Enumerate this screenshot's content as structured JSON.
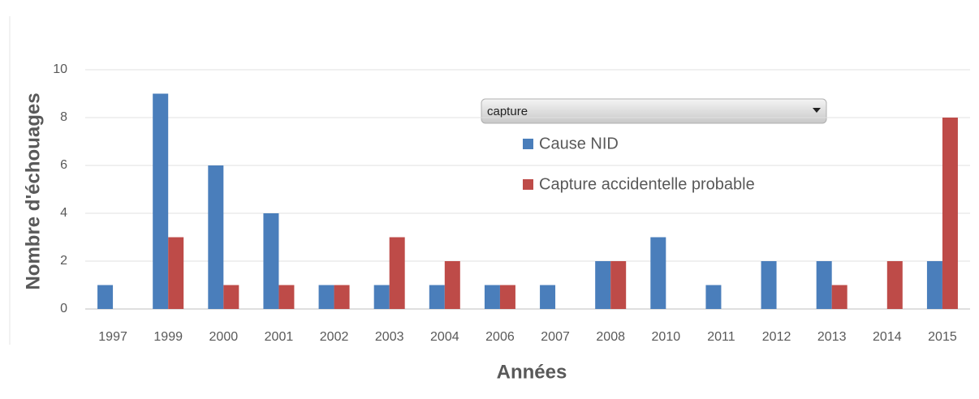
{
  "chart_data": {
    "type": "bar",
    "filter": "capture",
    "x_label": "Années",
    "y_label": "Nombre d'échouages",
    "categories": [
      "1997",
      "1999",
      "2000",
      "2001",
      "2002",
      "2003",
      "2004",
      "2006",
      "2007",
      "2008",
      "2010",
      "2011",
      "2012",
      "2013",
      "2014",
      "2015"
    ],
    "series": [
      {
        "name": "Cause NID",
        "color": "#4a7ebb",
        "values": [
          1,
          9,
          6,
          4,
          1,
          1,
          1,
          1,
          1,
          2,
          3,
          1,
          2,
          2,
          null,
          2
        ]
      },
      {
        "name": "Capture accidentelle probable",
        "color": "#be4b48",
        "values": [
          null,
          3,
          1,
          1,
          1,
          3,
          2,
          1,
          null,
          2,
          null,
          null,
          null,
          1,
          2,
          8
        ]
      }
    ],
    "ylim": [
      0,
      10
    ],
    "yticks": [
      0,
      2,
      4,
      6,
      8,
      10
    ],
    "grid": true
  }
}
